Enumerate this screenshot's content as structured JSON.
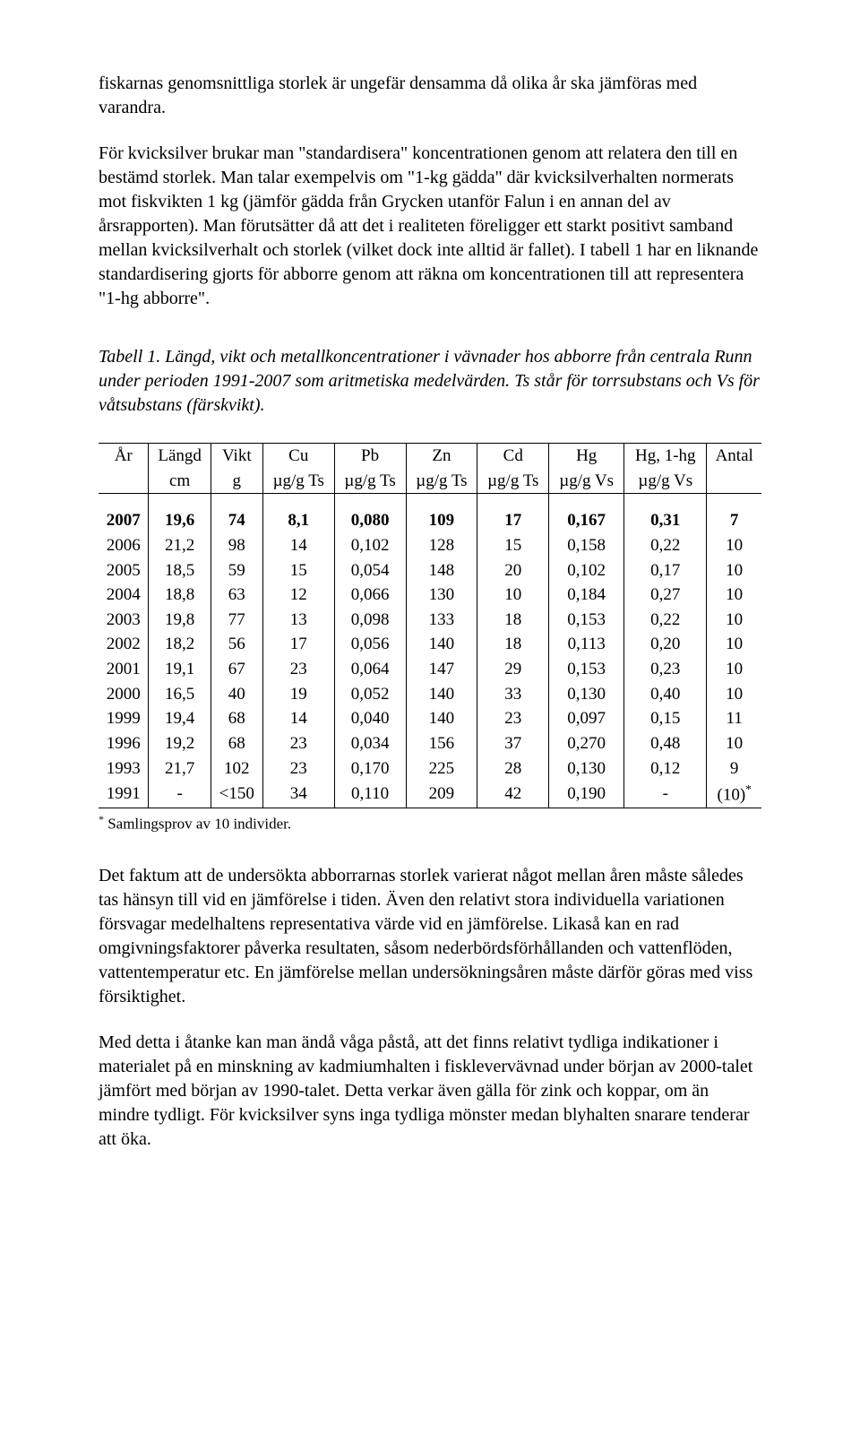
{
  "para1": "fiskarnas genomsnittliga storlek är ungefär densamma då olika år ska jämföras med varandra.",
  "para2": "För kvicksilver brukar man \"standardisera\" koncentrationen genom att relatera den till en bestämd storlek. Man talar exempelvis om \"1-kg gädda\" där kvicksilverhalten normerats mot fiskvikten 1 kg (jämför gädda från Grycken utanför Falun i en annan del av årsrapporten). Man förutsätter då att det i realiteten föreligger ett starkt positivt samband mellan kvicksilverhalt och storlek (vilket dock inte alltid är fallet). I tabell 1 har en liknande standardisering gjorts för abborre genom att räkna om koncentrationen till att representera \"1-hg abborre\".",
  "caption": "Tabell 1. Längd, vikt och metallkoncentrationer i vävnader hos abborre från centrala Runn under perioden 1991-2007 som aritmetiska medelvärden. Ts står för torrsubstans och Vs för våtsubstans (färskvikt).",
  "headers": {
    "h0a": "År",
    "h0b": "",
    "h1a": "Längd",
    "h1b": "cm",
    "h2a": "Vikt",
    "h2b": "g",
    "h3a": "Cu",
    "h3b": "µg/g Ts",
    "h4a": "Pb",
    "h4b": "µg/g Ts",
    "h5a": "Zn",
    "h5b": "µg/g Ts",
    "h6a": "Cd",
    "h6b": "µg/g Ts",
    "h7a": "Hg",
    "h7b": "µg/g Vs",
    "h8a": "Hg, 1-hg",
    "h8b": "µg/g Vs",
    "h9a": "Antal",
    "h9b": ""
  },
  "rows": [
    {
      "bold": true,
      "c": [
        "2007",
        "19,6",
        "74",
        "8,1",
        "0,080",
        "109",
        "17",
        "0,167",
        "0,31",
        "7"
      ]
    },
    {
      "bold": false,
      "c": [
        "2006",
        "21,2",
        "98",
        "14",
        "0,102",
        "128",
        "15",
        "0,158",
        "0,22",
        "10"
      ]
    },
    {
      "bold": false,
      "c": [
        "2005",
        "18,5",
        "59",
        "15",
        "0,054",
        "148",
        "20",
        "0,102",
        "0,17",
        "10"
      ]
    },
    {
      "bold": false,
      "c": [
        "2004",
        "18,8",
        "63",
        "12",
        "0,066",
        "130",
        "10",
        "0,184",
        "0,27",
        "10"
      ]
    },
    {
      "bold": false,
      "c": [
        "2003",
        "19,8",
        "77",
        "13",
        "0,098",
        "133",
        "18",
        "0,153",
        "0,22",
        "10"
      ]
    },
    {
      "bold": false,
      "c": [
        "2002",
        "18,2",
        "56",
        "17",
        "0,056",
        "140",
        "18",
        "0,113",
        "0,20",
        "10"
      ]
    },
    {
      "bold": false,
      "c": [
        "2001",
        "19,1",
        "67",
        "23",
        "0,064",
        "147",
        "29",
        "0,153",
        "0,23",
        "10"
      ]
    },
    {
      "bold": false,
      "c": [
        "2000",
        "16,5",
        "40",
        "19",
        "0,052",
        "140",
        "33",
        "0,130",
        "0,40",
        "10"
      ]
    },
    {
      "bold": false,
      "c": [
        "1999",
        "19,4",
        "68",
        "14",
        "0,040",
        "140",
        "23",
        "0,097",
        "0,15",
        "11"
      ]
    },
    {
      "bold": false,
      "c": [
        "1996",
        "19,2",
        "68",
        "23",
        "0,034",
        "156",
        "37",
        "0,270",
        "0,48",
        "10"
      ]
    },
    {
      "bold": false,
      "c": [
        "1993",
        "21,7",
        "102",
        "23",
        "0,170",
        "225",
        "28",
        "0,130",
        "0,12",
        "9"
      ]
    },
    {
      "bold": false,
      "c": [
        "1991",
        "-",
        "<150",
        "34",
        "0,110",
        "209",
        "42",
        "0,190",
        "-",
        "(10)*"
      ],
      "lastSup": true
    }
  ],
  "footnote_pre": "*",
  "footnote": " Samlingsprov av 10 individer.",
  "para3": "Det faktum att de undersökta abborrarnas storlek varierat något mellan åren måste således tas hänsyn till vid en jämförelse i tiden. Även den relativt stora individuella variationen försvagar medelhaltens representativa värde vid en jämförelse. Likaså kan en rad omgivningsfaktorer påverka resultaten, såsom nederbördsförhållanden och vattenflöden, vattentemperatur etc. En jämförelse mellan undersökningsåren måste därför göras med viss försiktighet.",
  "para4": "Med detta i åtanke kan man ändå våga påstå, att det finns relativt tydliga indikationer i materialet på en minskning av kadmiumhalten i fisklevervävnad under början av 2000-talet jämfört med början av 1990-talet. Detta verkar även gälla för zink och koppar, om än mindre tydligt. För kvicksilver syns inga tydliga mönster medan blyhalten snarare tenderar att öka."
}
